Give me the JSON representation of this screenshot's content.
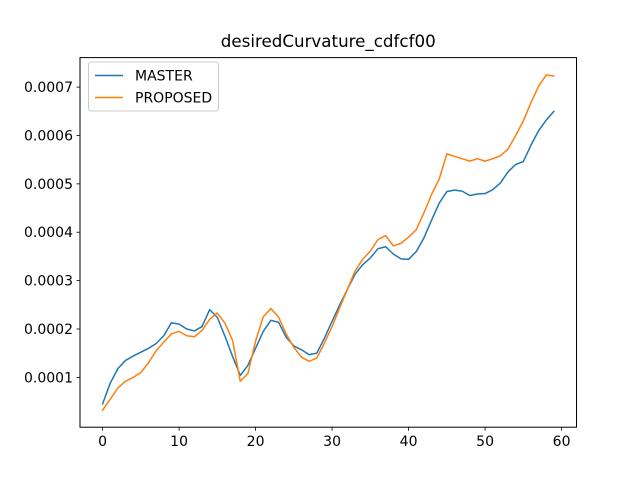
{
  "figure": {
    "title": "desiredCurvature_cdfcf00"
  },
  "legend": {
    "position": "upper left",
    "items": [
      {
        "label": "MASTER",
        "color": "#1f77b4"
      },
      {
        "label": "PROPOSED",
        "color": "#ff7f0e"
      }
    ]
  },
  "chart_data": {
    "type": "line",
    "title": "desiredCurvature_cdfcf00",
    "xlabel": "",
    "ylabel": "",
    "grid": false,
    "legend_position": "upper left",
    "xlim": [
      -2.95,
      61.95
    ],
    "ylim": [
      -3e-06,
      0.000761
    ],
    "xticks": [
      0,
      10,
      20,
      30,
      40,
      50,
      60
    ],
    "xtick_labels": [
      "0",
      "10",
      "20",
      "30",
      "40",
      "50",
      "60"
    ],
    "yticks": [
      0.0001,
      0.0002,
      0.0003,
      0.0004,
      0.0005,
      0.0006,
      0.0007
    ],
    "ytick_labels": [
      "0.0001",
      "0.0002",
      "0.0003",
      "0.0004",
      "0.0005",
      "0.0006",
      "0.0007"
    ],
    "x": [
      0,
      1,
      2,
      3,
      4,
      5,
      6,
      7,
      8,
      9,
      10,
      11,
      12,
      13,
      14,
      15,
      16,
      17,
      18,
      19,
      20,
      21,
      22,
      23,
      24,
      25,
      26,
      27,
      28,
      29,
      30,
      31,
      32,
      33,
      34,
      35,
      36,
      37,
      38,
      39,
      40,
      41,
      42,
      43,
      44,
      45,
      46,
      47,
      48,
      49,
      50,
      51,
      52,
      53,
      54,
      55,
      56,
      57,
      58,
      59
    ],
    "series": [
      {
        "name": "MASTER",
        "color": "#1f77b4",
        "values": [
          4.5e-05,
          8.8e-05,
          0.000118,
          0.000135,
          0.000144,
          0.000152,
          0.00016,
          0.00017,
          0.000186,
          0.000213,
          0.00021,
          0.0002,
          0.000196,
          0.000205,
          0.00024,
          0.000224,
          0.000185,
          0.000143,
          0.000104,
          0.000125,
          0.00016,
          0.000195,
          0.000218,
          0.000214,
          0.000183,
          0.000165,
          0.000157,
          0.000147,
          0.00015,
          0.000181,
          0.000216,
          0.00025,
          0.000282,
          0.000313,
          0.000333,
          0.000347,
          0.000366,
          0.00037,
          0.000355,
          0.000345,
          0.000344,
          0.00036,
          0.000388,
          0.000425,
          0.00046,
          0.000484,
          0.000487,
          0.000485,
          0.000476,
          0.000479,
          0.00048,
          0.000488,
          0.000502,
          0.000525,
          0.00054,
          0.000546,
          0.00058,
          0.00061,
          0.000632,
          0.00065
        ]
      },
      {
        "name": "PROPOSED",
        "color": "#ff7f0e",
        "values": [
          3.2e-05,
          5.5e-05,
          7.8e-05,
          9.2e-05,
          0.0001,
          0.00011,
          0.00013,
          0.000155,
          0.000173,
          0.00019,
          0.000195,
          0.000186,
          0.000184,
          0.000197,
          0.00022,
          0.000233,
          0.000212,
          0.000176,
          9.2e-05,
          0.000108,
          0.000175,
          0.000225,
          0.000242,
          0.000225,
          0.00019,
          0.000162,
          0.000142,
          0.000133,
          0.00014,
          0.000171,
          0.000205,
          0.000244,
          0.000282,
          0.00032,
          0.000344,
          0.000361,
          0.000385,
          0.000393,
          0.000372,
          0.000377,
          0.00039,
          0.000405,
          0.00044,
          0.000478,
          0.00051,
          0.000562,
          0.000557,
          0.000552,
          0.000547,
          0.000552,
          0.000547,
          0.000552,
          0.000558,
          0.000572,
          0.0006,
          0.00063,
          0.000668,
          0.000702,
          0.000725,
          0.000723
        ]
      }
    ]
  }
}
